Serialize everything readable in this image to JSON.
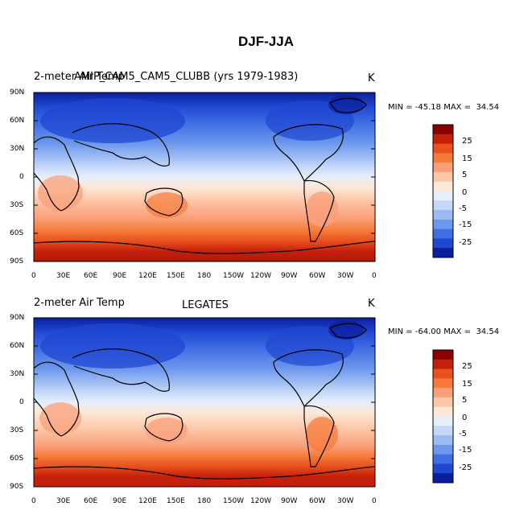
{
  "title": "DJF-JJA",
  "panels": [
    {
      "left_label": "2-meter Air Temp",
      "center_label": "AMIP_CAM5_CAM5_CLUBB (yrs 1979-1983)",
      "right_label": "K",
      "stats": "MIN = -45.18 MAX =  34.54"
    },
    {
      "left_label": "2-meter Air Temp",
      "center_label": "LEGATES",
      "right_label": "K",
      "stats": "MIN = -64.00 MAX =  34.54"
    }
  ],
  "lat_ticks": [
    "90N",
    "60N",
    "30N",
    "0",
    "30S",
    "60S",
    "90S"
  ],
  "lon_ticks": [
    "0",
    "30E",
    "60E",
    "90E",
    "120E",
    "150E",
    "180",
    "150W",
    "120W",
    "90W",
    "60W",
    "30W",
    "0"
  ],
  "colorbar": {
    "labels": [
      "25",
      "15",
      "5",
      "-5",
      "-15",
      "-25"
    ],
    "top_labels": [
      "25",
      "15",
      "5",
      "0",
      "-5",
      "-15",
      "-25"
    ],
    "colors": [
      "#8b0000",
      "#c4200c",
      "#e8501d",
      "#f57a3a",
      "#f9a07a",
      "#fcc6a6",
      "#fde8d8",
      "#e6eefc",
      "#c6d8f8",
      "#9dbbf3",
      "#6c97ec",
      "#3f6ee4",
      "#1f47d2",
      "#0b1f9c"
    ]
  },
  "colors": {
    "antarctic": "#c4200c",
    "tropics_warm": "#fcc6a6",
    "mid_cool": "#c6d8f8",
    "arctic": "#1f47d2"
  }
}
